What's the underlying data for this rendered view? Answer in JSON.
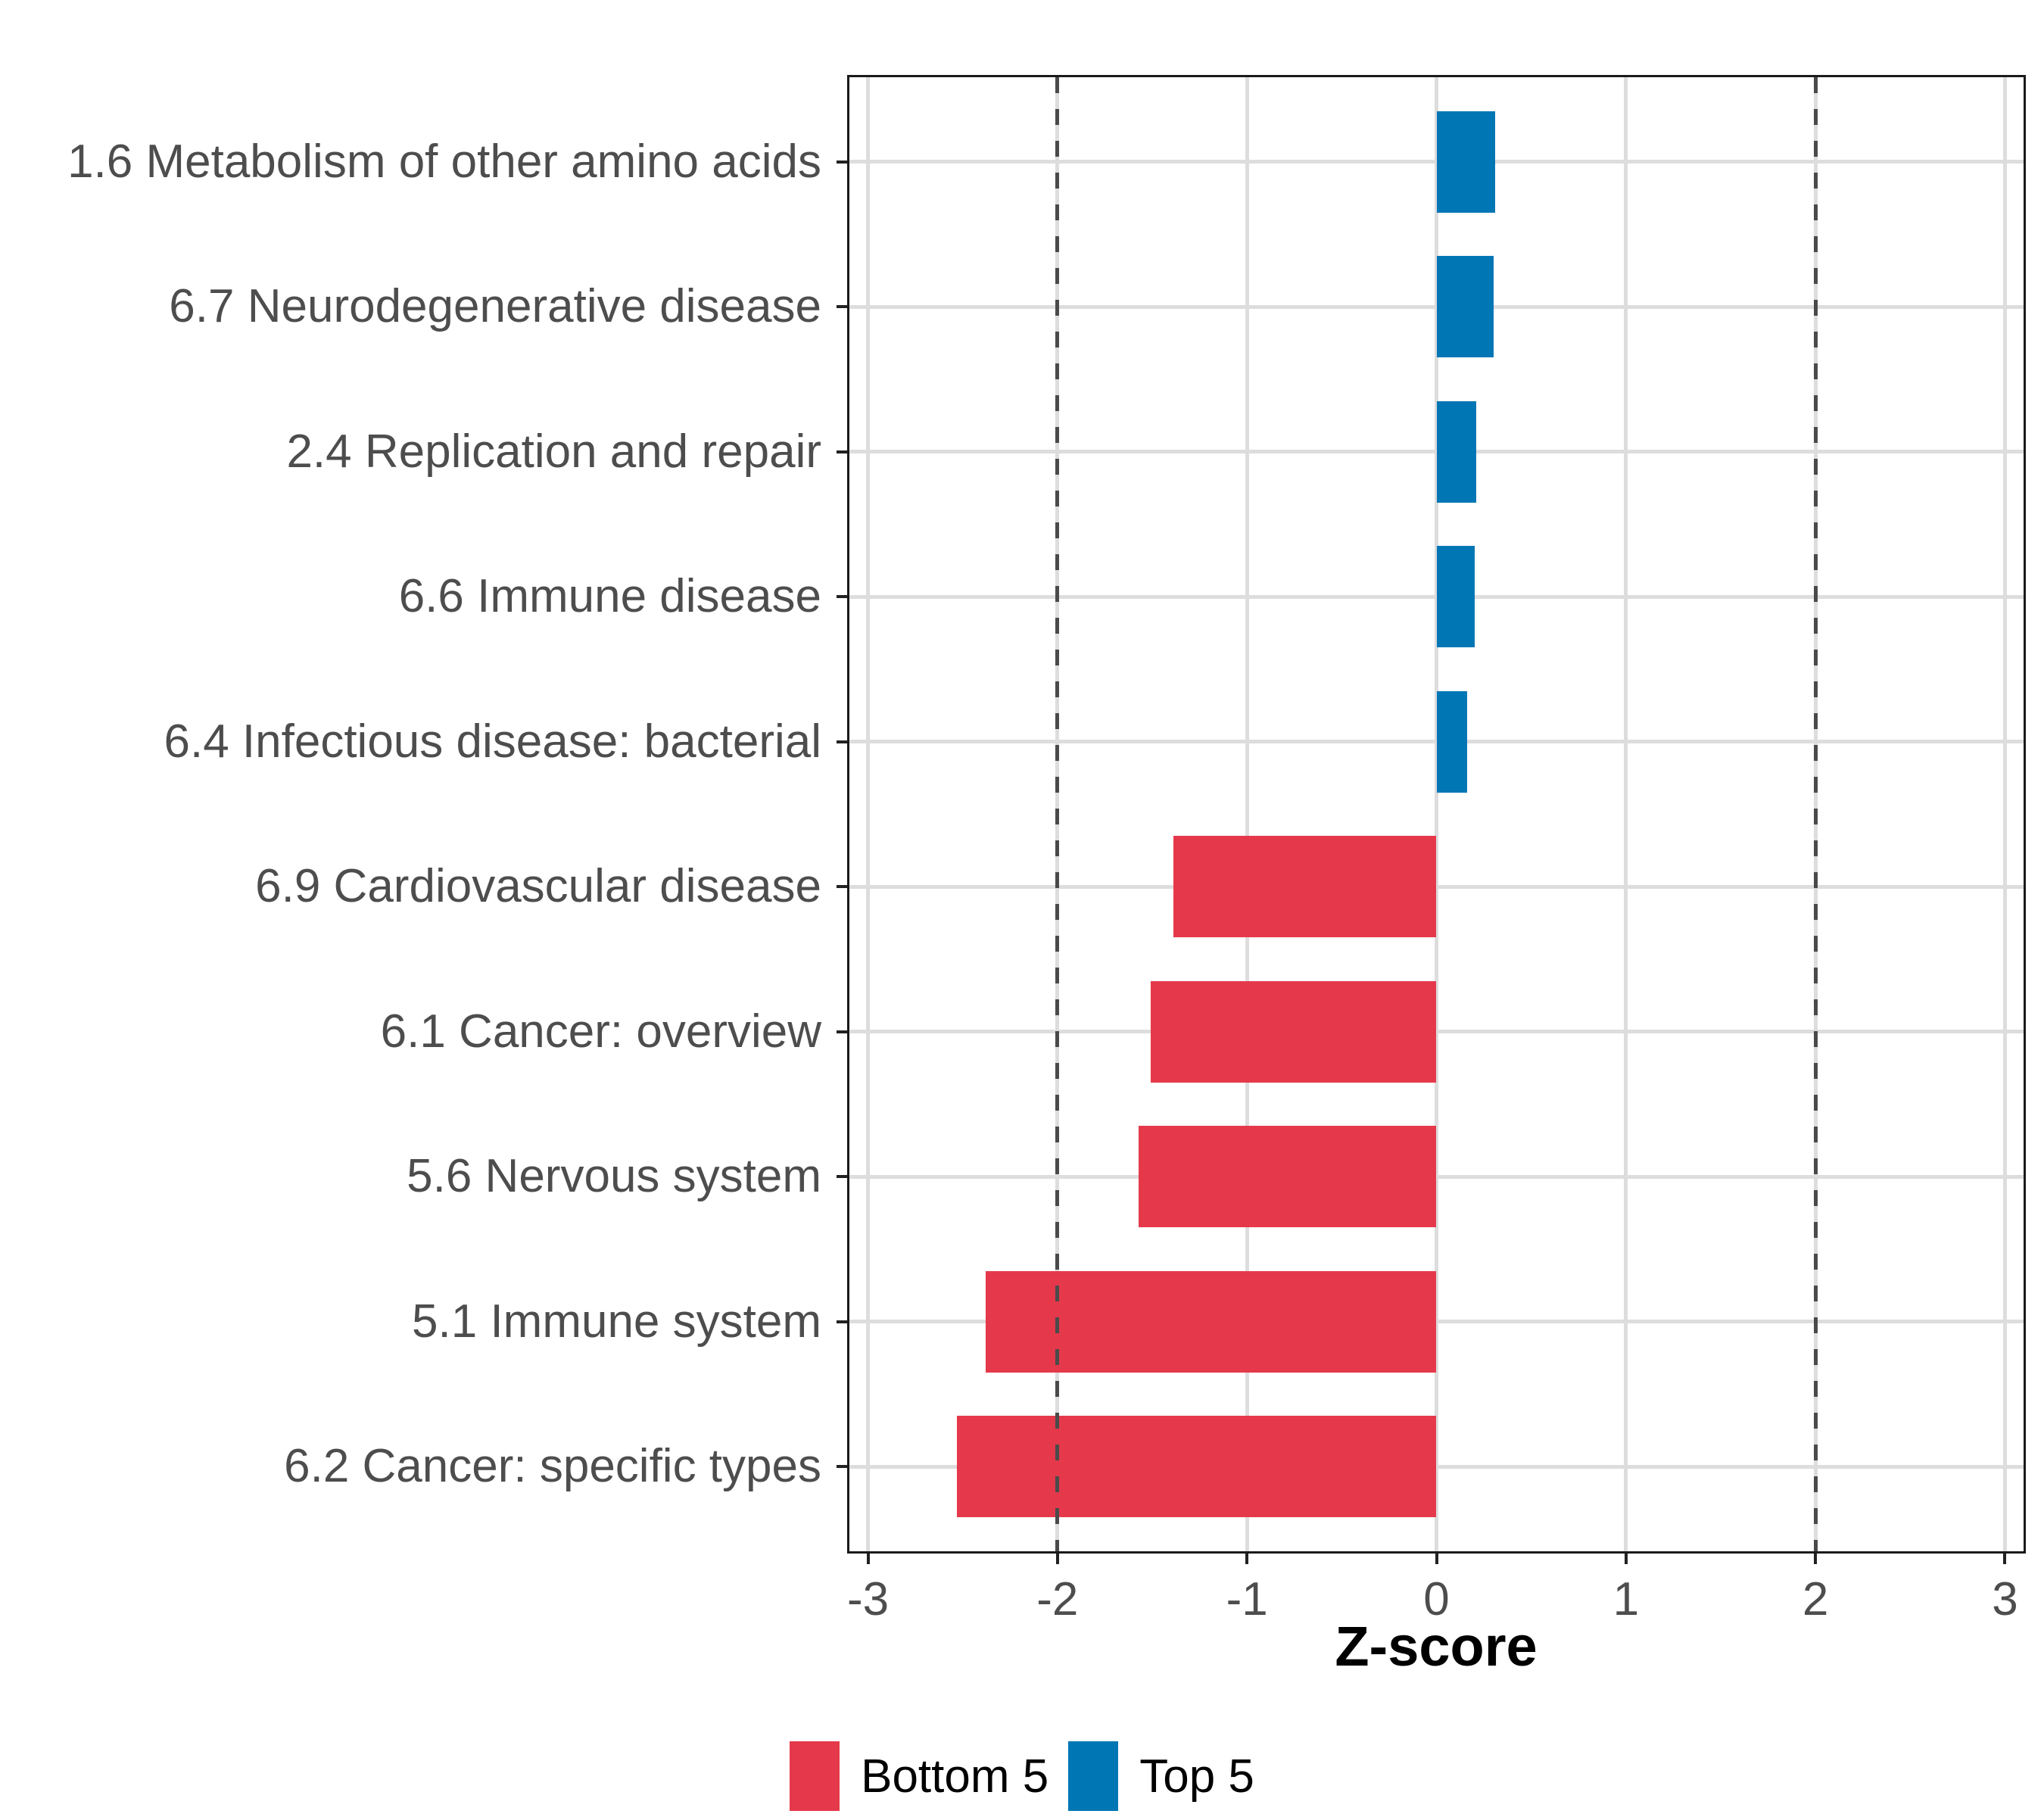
{
  "chart_data": {
    "type": "bar",
    "orientation": "horizontal",
    "title": "",
    "xlabel": "Z-score",
    "ylabel": "",
    "grid": "major",
    "x_ticks": [
      -3,
      -2,
      -1,
      0,
      1,
      2,
      3
    ],
    "xlim": [
      -3.11,
      3.11
    ],
    "reference_lines": {
      "values": [
        -2,
        2
      ],
      "style": "dashed",
      "color": "#4A4A4A"
    },
    "categories": [
      "1.6 Metabolism of other amino acids",
      "6.7 Neurodegenerative disease",
      "2.4 Replication and repair",
      "6.6 Immune disease",
      "6.4 Infectious disease: bacterial",
      "6.9 Cardiovascular disease",
      "6.1 Cancer: overview",
      "5.6 Nervous system",
      "5.1 Immune system",
      "6.2 Cancer: specific types"
    ],
    "values": [
      0.31,
      0.3,
      0.21,
      0.2,
      0.16,
      -1.39,
      -1.51,
      -1.57,
      -2.38,
      -2.53
    ],
    "groups": [
      "Top 5",
      "Top 5",
      "Top 5",
      "Top 5",
      "Top 5",
      "Bottom 5",
      "Bottom 5",
      "Bottom 5",
      "Bottom 5",
      "Bottom 5"
    ],
    "group_colors": {
      "Bottom 5": "#E5394B",
      "Top 5": "#0076B5"
    },
    "legend_position": "bottom",
    "legend": [
      {
        "label": "Bottom 5",
        "color": "#E5394B"
      },
      {
        "label": "Top 5",
        "color": "#0076B5"
      }
    ]
  },
  "colors": {
    "background": "#FFFFFF",
    "panel_border": "#1A1A1A",
    "gridline": "#DDDDDD",
    "axis_text": "#4D4D4D",
    "axis_title": "#000000",
    "reference_line": "#4A4A4A"
  }
}
